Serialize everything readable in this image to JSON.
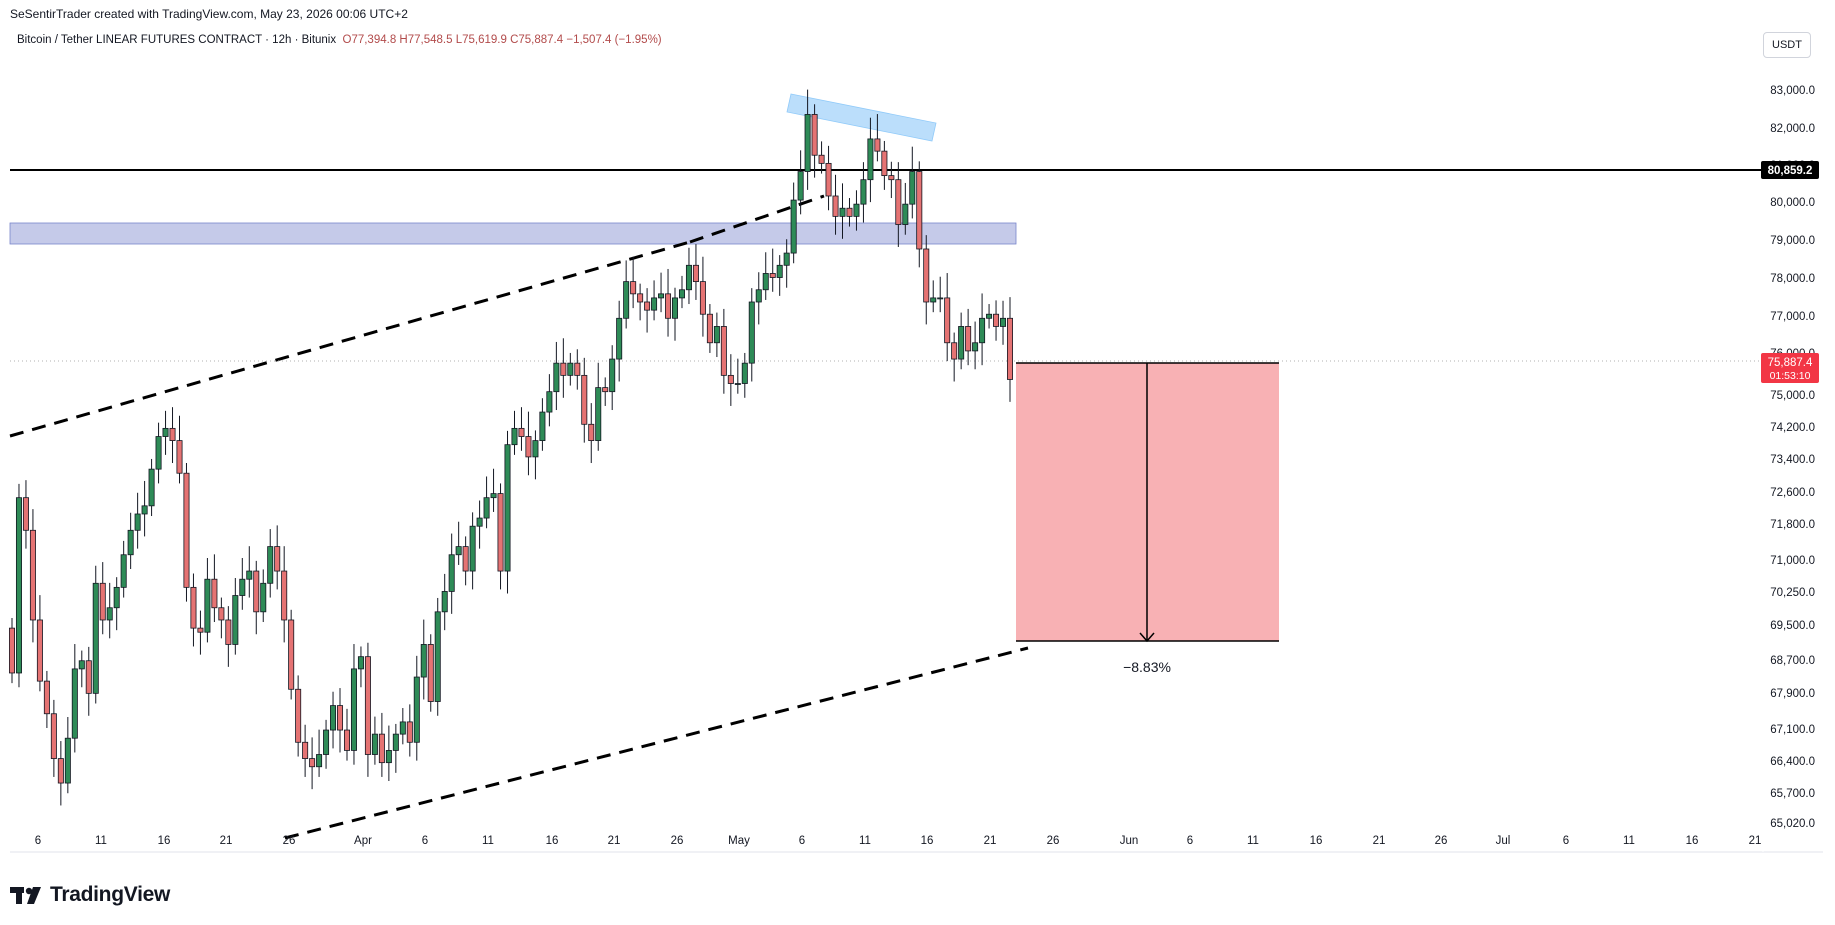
{
  "header": {
    "attribution": "SeSentirTrader created with TradingView.com, May 23, 2026 00:06 UTC+2",
    "symbol": "Bitcoin / Tether LINEAR FUTURES CONTRACT · 12h · Bitunix",
    "open": "O77,394.8",
    "high": "H77,548.5",
    "low": "L75,619.9",
    "close": "C75,887.4",
    "change": "−1,507.4 (−1.95%)",
    "currency": "USDT"
  },
  "brand": {
    "name": "TradingView",
    "icon": "tradingview-logo-icon"
  },
  "colors": {
    "up": "#26a69a",
    "up_fill": "#2e8b57",
    "down": "#ef5350",
    "down_fill": "#e57373",
    "zone": "#9fa8da",
    "top_zone": "#90caf9",
    "target_box": "#f8b1b4"
  },
  "chart_data": {
    "type": "candlestick",
    "timeframe": "12h",
    "y_ticks": [
      "83,000.0",
      "82,000.0",
      "81,000.0",
      "80,000.0",
      "79,000.0",
      "78,000.0",
      "77,000.0",
      "76,000.0",
      "75,000.0",
      "74,200.0",
      "73,400.0",
      "72,600.0",
      "71,800.0",
      "71,000.0",
      "70,250.0",
      "69,500.0",
      "68,700.0",
      "67,900.0",
      "67,100.0",
      "66,400.0",
      "65,700.0",
      "65,020.0"
    ],
    "x_ticks": [
      "6",
      "11",
      "16",
      "21",
      "26",
      "Apr",
      "6",
      "11",
      "16",
      "21",
      "26",
      "May",
      "6",
      "11",
      "16",
      "21",
      "26",
      "Jun",
      "6",
      "11",
      "16",
      "21",
      "26",
      "Jul",
      "6",
      "11",
      "16",
      "21"
    ],
    "closes": [
      68700,
      73000,
      72200,
      70000,
      68500,
      67700,
      66600,
      66000,
      67100,
      68800,
      69000,
      68200,
      70900,
      70000,
      70300,
      70800,
      71600,
      72200,
      72600,
      72800,
      73700,
      74500,
      74700,
      74400,
      73600,
      70800,
      69800,
      69700,
      71000,
      70300,
      70000,
      69400,
      70600,
      71000,
      71200,
      70200,
      70900,
      71800,
      71200,
      70000,
      68300,
      67000,
      66600,
      66400,
      66700,
      67300,
      67900,
      67300,
      66800,
      68800,
      69100,
      66700,
      67200,
      66500,
      66800,
      67200,
      67500,
      67000,
      68600,
      69400,
      68000,
      70200,
      70700,
      71600,
      71800,
      71200,
      72300,
      72500,
      73000,
      73100,
      71200,
      74300,
      74700,
      74500,
      74000,
      74400,
      75100,
      75600,
      76300,
      76000,
      76300,
      76000,
      74800,
      74400,
      75700,
      75600,
      76400,
      77400,
      78300,
      78000,
      77800,
      77600,
      77900,
      78000,
      77400,
      77900,
      78100,
      78700,
      78300,
      77500,
      76800,
      77200,
      76000,
      75800,
      75800,
      76300,
      77800,
      78100,
      78500,
      78400,
      78700,
      79000,
      80300,
      81000,
      82400,
      81400,
      81200,
      80400,
      79900,
      80100,
      79900,
      80200,
      80800,
      81800,
      81500,
      80900,
      80800,
      79700,
      80200,
      81000,
      79100,
      77800,
      77900,
      77900,
      76800,
      76400,
      77200,
      76600,
      76800,
      77400,
      77500,
      77200,
      77400,
      75900
    ],
    "last_price": "75,887.4",
    "countdown": "01:53:10",
    "horizontal_line_label": "80,859.2",
    "target_label": "−8.83%"
  }
}
